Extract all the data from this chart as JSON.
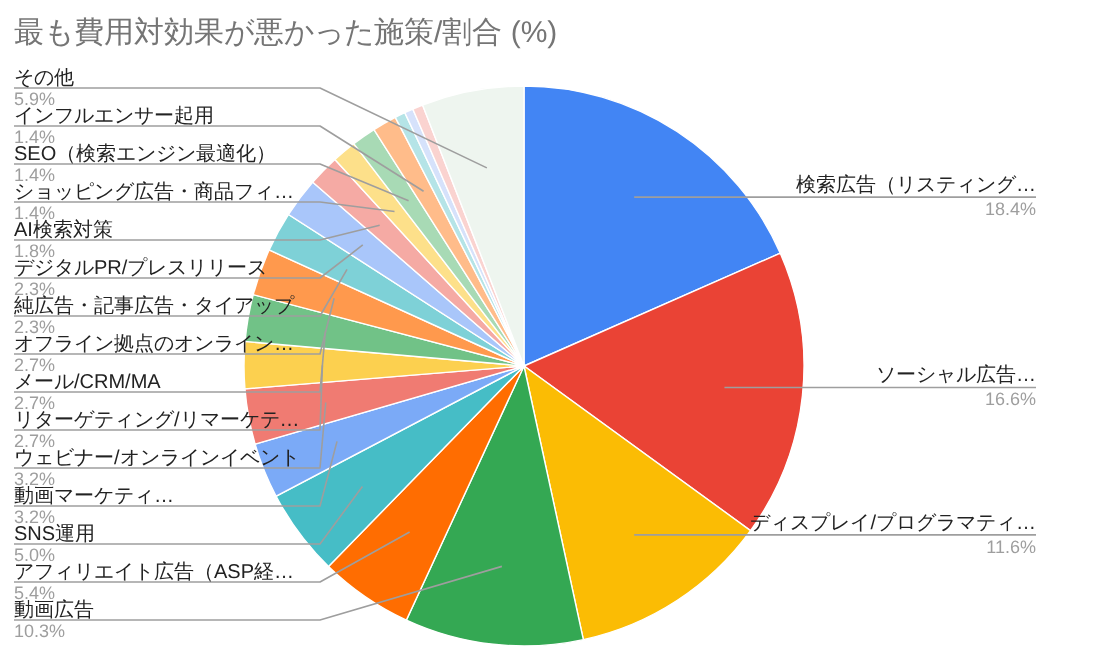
{
  "chart_data": {
    "type": "pie",
    "title": "最も費用対効果が悪かった施策/割合 (%)",
    "categories": [
      "検索広告（リスティング…",
      "ソーシャル広告…",
      "ディスプレイ/プログラマティ…",
      "動画広告",
      "アフィリエイト広告（ASP経…",
      "SNS運用",
      "動画マーケティ…",
      "ウェビナー/オンラインイベント",
      "リターゲティング/リマーケテ…",
      "メール/CRM/MA",
      "オフライン拠点のオンライン…",
      "純広告・記事広告・タイアップ",
      "デジタルPR/プレスリリース",
      "AI検索対策",
      "ショッピング広告・商品フィ…",
      "SEO（検索エンジン最適化）",
      "インフルエンサー起用",
      null,
      null,
      null,
      "その他"
    ],
    "values": [
      18.4,
      16.6,
      11.6,
      10.3,
      5.4,
      5.0,
      3.2,
      3.2,
      2.7,
      2.7,
      2.7,
      2.3,
      2.3,
      1.8,
      1.4,
      1.4,
      1.4,
      0.6,
      0.5,
      0.6,
      5.9
    ],
    "value_labels": [
      "18.4%",
      "16.6%",
      "11.6%",
      "10.3%",
      "5.4%",
      "5.0%",
      "3.2%",
      "3.2%",
      "2.7%",
      "2.7%",
      "2.7%",
      "2.3%",
      "2.3%",
      "1.8%",
      "1.4%",
      "1.4%",
      "1.4%",
      null,
      null,
      null,
      "5.9%"
    ],
    "colors": [
      "#4285f4",
      "#ea4335",
      "#fbbc04",
      "#34a853",
      "#ff6d01",
      "#46bdc6",
      "#7baaf7",
      "#f07b72",
      "#fcd04f",
      "#71c287",
      "#ff994d",
      "#7ed1d7",
      "#a9c6fa",
      "#f5aaa4",
      "#fde08a",
      "#a8dab5",
      "#ffbc8a",
      "#b5e4e7",
      "#d6e2fb",
      "#fad3d0",
      "#eef5ef"
    ],
    "legend": false
  }
}
